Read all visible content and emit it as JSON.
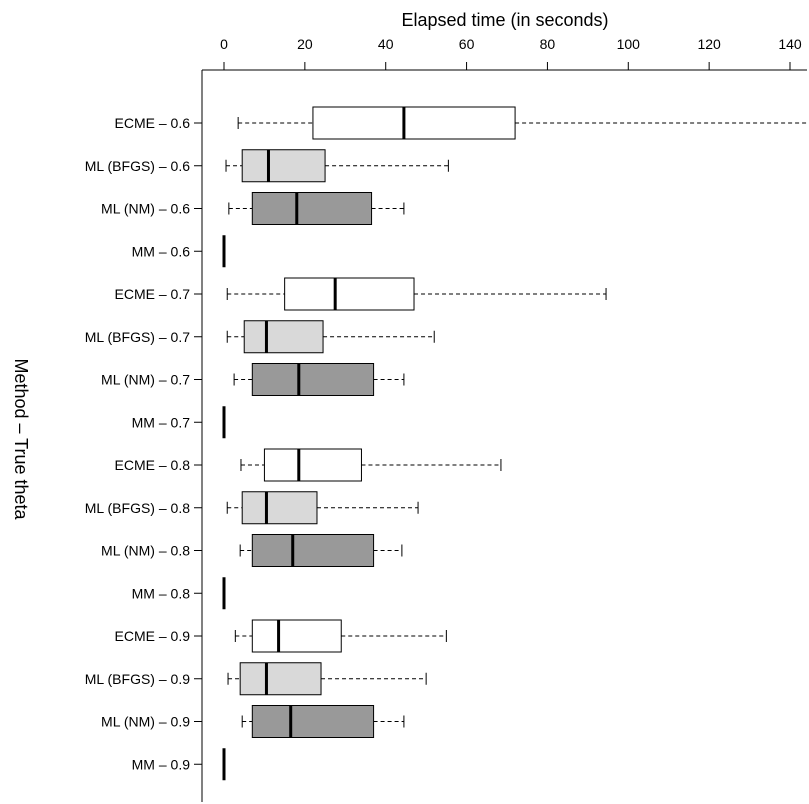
{
  "chart_data": {
    "type": "boxplot",
    "orientation": "horizontal",
    "xlabel": "Elapsed time (in seconds)",
    "ylabel": "Method – True theta",
    "xlim": [
      0,
      145
    ],
    "xticks": [
      0,
      20,
      40,
      60,
      80,
      100,
      120,
      140
    ],
    "x_axis_position": "top",
    "grid": false,
    "fill_colors": {
      "ECME": "#ffffff",
      "ML (BFGS)": "#d9d9d9",
      "ML (NM)": "#999999",
      "MM": "#ffffff"
    },
    "boxes": [
      {
        "label": "ECME – 0.6",
        "method": "ECME",
        "min": 3.5,
        "q1": 22,
        "median": 44.5,
        "q3": 72,
        "max": 145
      },
      {
        "label": "ML (BFGS) – 0.6",
        "method": "ML (BFGS)",
        "min": 0.5,
        "q1": 4.5,
        "median": 11,
        "q3": 25,
        "max": 55.5
      },
      {
        "label": "ML (NM) – 0.6",
        "method": "ML (NM)",
        "min": 1.2,
        "q1": 7,
        "median": 18,
        "q3": 36.5,
        "max": 44.5
      },
      {
        "label": "MM – 0.6",
        "method": "MM",
        "min": 0,
        "q1": 0,
        "median": 0,
        "q3": 0,
        "max": 0
      },
      {
        "label": "ECME – 0.7",
        "method": "ECME",
        "min": 0.8,
        "q1": 15,
        "median": 27.5,
        "q3": 47,
        "max": 94.5
      },
      {
        "label": "ML (BFGS) – 0.7",
        "method": "ML (BFGS)",
        "min": 0.8,
        "q1": 5,
        "median": 10.5,
        "q3": 24.5,
        "max": 52
      },
      {
        "label": "ML (NM) – 0.7",
        "method": "ML (NM)",
        "min": 2.5,
        "q1": 7,
        "median": 18.5,
        "q3": 37,
        "max": 44.5
      },
      {
        "label": "MM – 0.7",
        "method": "MM",
        "min": 0,
        "q1": 0,
        "median": 0,
        "q3": 0,
        "max": 0
      },
      {
        "label": "ECME – 0.8",
        "method": "ECME",
        "min": 4.2,
        "q1": 10,
        "median": 18.5,
        "q3": 34,
        "max": 68.5
      },
      {
        "label": "ML (BFGS) – 0.8",
        "method": "ML (BFGS)",
        "min": 0.8,
        "q1": 4.5,
        "median": 10.5,
        "q3": 23,
        "max": 48
      },
      {
        "label": "ML (NM) – 0.8",
        "method": "ML (NM)",
        "min": 4,
        "q1": 7,
        "median": 17,
        "q3": 37,
        "max": 44
      },
      {
        "label": "MM – 0.8",
        "method": "MM",
        "min": 0,
        "q1": 0,
        "median": 0,
        "q3": 0,
        "max": 0
      },
      {
        "label": "ECME – 0.9",
        "method": "ECME",
        "min": 2.8,
        "q1": 7,
        "median": 13.5,
        "q3": 29,
        "max": 55
      },
      {
        "label": "ML (BFGS) – 0.9",
        "method": "ML (BFGS)",
        "min": 1,
        "q1": 4,
        "median": 10.5,
        "q3": 24,
        "max": 50
      },
      {
        "label": "ML (NM) – 0.9",
        "method": "ML (NM)",
        "min": 4.5,
        "q1": 7,
        "median": 16.5,
        "q3": 37,
        "max": 44.5
      },
      {
        "label": "MM – 0.9",
        "method": "MM",
        "min": 0,
        "q1": 0,
        "median": 0,
        "q3": 0,
        "max": 0
      }
    ]
  }
}
